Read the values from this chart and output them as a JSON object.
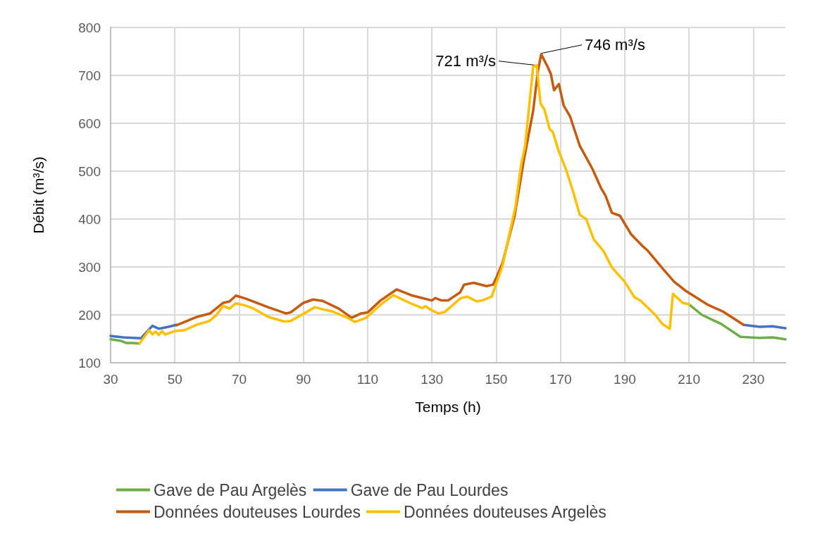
{
  "chart_data": {
    "type": "line",
    "xlabel": "Temps (h)",
    "ylabel": "Débit (m³/s)",
    "xlim": [
      30,
      240
    ],
    "xticks": [
      30,
      50,
      70,
      90,
      110,
      130,
      150,
      170,
      190,
      210,
      230
    ],
    "ylim": [
      100,
      800
    ],
    "yticks": [
      100,
      200,
      300,
      400,
      500,
      600,
      700,
      800
    ],
    "grid": true,
    "legend": "bottom",
    "line_style": "solid",
    "marker": "none",
    "annotations": [
      {
        "text": "721 m³/s",
        "x": 162.6,
        "y": 721
      },
      {
        "text": "746 m³/s",
        "x": 164,
        "y": 746
      }
    ],
    "series": [
      {
        "name": "Gave de Pau Argelès",
        "color": "#70ad47",
        "x": [
          30,
          33,
          35,
          37,
          39,
          120,
          210,
          214,
          220,
          226,
          232,
          236,
          240
        ],
        "values": [
          149,
          146,
          141,
          141,
          140,
          null,
          222,
          200,
          181,
          154,
          152,
          153,
          149
        ]
      },
      {
        "name": "Gave de Pau Lourdes",
        "color": "#4472c4",
        "x": [
          30,
          34,
          39.4,
          43,
          45,
          48,
          50.4,
          140,
          227,
          232,
          236,
          240
        ],
        "values": [
          156,
          153,
          151,
          177,
          171,
          175,
          179,
          null,
          179,
          175,
          176,
          172
        ]
      },
      {
        "name": "Données douteuses Lourdes",
        "color": "#c55a11",
        "x": [
          50.4,
          57,
          61,
          65,
          67,
          69,
          72,
          79,
          84.5,
          86,
          90,
          93,
          96,
          101,
          105,
          108,
          110,
          114,
          119,
          124,
          130,
          131,
          133,
          135,
          138.8,
          140,
          143,
          147,
          149,
          150,
          152,
          155.7,
          158.5,
          161.5,
          163,
          164,
          166,
          167,
          168,
          169.5,
          171,
          173,
          176,
          180,
          182.6,
          184,
          186,
          188.5,
          192,
          195.8,
          197,
          201,
          202,
          205.4,
          209,
          215.6,
          220.8,
          227
        ],
        "values": [
          178,
          196,
          203,
          225,
          228,
          240,
          234,
          216,
          203,
          205,
          225,
          232,
          229,
          213,
          194,
          203,
          205,
          230,
          253,
          240,
          230,
          235,
          230,
          230,
          247,
          263,
          267,
          260,
          263,
          277,
          309,
          406,
          519,
          626,
          710,
          744,
          718,
          703,
          669,
          682,
          637,
          614,
          553,
          504,
          465,
          449,
          413,
          407,
          368,
          342,
          335,
          303,
          295,
          269,
          250,
          222,
          206,
          179
        ]
      },
      {
        "name": "Données douteuses Argelès",
        "color": "#ffc000",
        "x": [
          39,
          42,
          43,
          44,
          45,
          46,
          47,
          50,
          53,
          57,
          60.7,
          63,
          65,
          67,
          69,
          71.7,
          74.5,
          79,
          84,
          86,
          90,
          93.6,
          95.8,
          99,
          103.7,
          106,
          109.6,
          114,
          118,
          123,
          127,
          128,
          129.8,
          132,
          134,
          139,
          141,
          144,
          146,
          148.6,
          151.9,
          156,
          157.8,
          159,
          161.5,
          162.6,
          163.8,
          165,
          166.6,
          167.6,
          169.5,
          171.7,
          174,
          176,
          178,
          180.4,
          183.5,
          186,
          190,
          193,
          195,
          199.5,
          201.7,
          204,
          205,
          208,
          210
        ],
        "values": [
          140,
          168,
          159,
          165,
          158,
          166,
          159,
          166,
          168,
          180,
          187,
          200,
          219,
          213,
          224,
          220,
          213,
          196,
          186,
          187,
          202,
          216,
          212,
          207,
          194,
          185,
          194,
          221,
          241,
          225,
          214,
          218,
          210,
          203,
          206,
          235,
          238,
          228,
          231,
          238,
          301,
          426,
          515,
          553,
          718,
          721,
          641,
          629,
          588,
          582,
          541,
          504,
          456,
          409,
          400,
          357,
          332,
          299,
          269,
          237,
          229,
          200,
          181,
          171,
          244,
          225,
          222
        ]
      }
    ]
  }
}
